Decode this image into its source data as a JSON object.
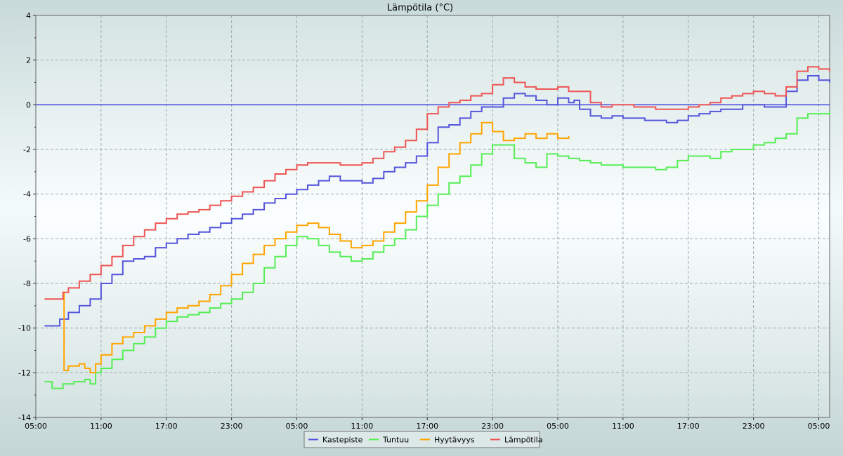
{
  "chart_data": {
    "type": "line",
    "title": "Lämpötila (°C)",
    "xlabel": "",
    "ylabel": "",
    "ylim": [
      -14,
      4
    ],
    "yticks": [
      "4",
      "2",
      "0",
      "-2",
      "-4",
      "-6",
      "-8",
      "-10",
      "-12",
      "-14"
    ],
    "x_tick_labels": [
      "05:00",
      "11:00",
      "17:00",
      "23:00",
      "05:00",
      "11:00",
      "17:00",
      "23:00",
      "05:00",
      "11:00",
      "17:00",
      "23:00",
      "05:00"
    ],
    "x_hours_range": [
      0,
      73
    ],
    "grid": true,
    "legend_position": "bottom-center",
    "reference_line": {
      "y": 0,
      "color": "#4444dd"
    },
    "series": [
      {
        "name": "Kastepiste",
        "color": "#5555dd",
        "x": [
          0.8,
          2.0,
          2.2,
          3.0,
          4.0,
          5.0,
          6.0,
          7.0,
          8.0,
          9.0,
          10.0,
          11.0,
          12.0,
          13.0,
          14.0,
          15.0,
          16.0,
          17.0,
          18.0,
          19.0,
          20.0,
          21.0,
          22.0,
          23.0,
          24.0,
          25.0,
          26.0,
          27.0,
          28.0,
          29.0,
          30.0,
          31.0,
          32.0,
          33.0,
          34.0,
          35.0,
          36.0,
          37.0,
          38.0,
          39.0,
          40.0,
          41.0,
          42.0,
          43.0,
          44.0,
          45.0,
          46.0,
          47.0,
          48.0,
          49.0,
          49.5,
          50.0,
          51.0,
          52.0,
          53.0,
          54.0,
          55.0,
          56.0,
          57.0,
          58.0,
          59.0,
          60.0,
          61.0,
          62.0,
          63.0,
          64.0,
          65.0,
          66.0,
          67.0,
          68.0,
          69.0,
          70.0,
          71.0,
          72.0,
          73.0
        ],
        "values": [
          -9.9,
          -9.9,
          -9.6,
          -9.3,
          -9.0,
          -8.7,
          -8.0,
          -7.6,
          -7.0,
          -6.9,
          -6.8,
          -6.4,
          -6.2,
          -6.0,
          -5.8,
          -5.7,
          -5.5,
          -5.3,
          -5.1,
          -4.9,
          -4.7,
          -4.4,
          -4.2,
          -4.0,
          -3.8,
          -3.6,
          -3.4,
          -3.2,
          -3.4,
          -3.4,
          -3.5,
          -3.3,
          -3.0,
          -2.8,
          -2.6,
          -2.3,
          -1.7,
          -1.0,
          -0.9,
          -0.6,
          -0.3,
          -0.1,
          -0.1,
          0.3,
          0.5,
          0.4,
          0.2,
          0.0,
          0.3,
          0.1,
          0.2,
          -0.2,
          -0.5,
          -0.6,
          -0.5,
          -0.6,
          -0.6,
          -0.7,
          -0.7,
          -0.8,
          -0.7,
          -0.5,
          -0.4,
          -0.3,
          -0.2,
          -0.2,
          0.0,
          0.0,
          -0.1,
          -0.1,
          0.6,
          1.1,
          1.3,
          1.1,
          1.0
        ]
      },
      {
        "name": "Tuntuu",
        "color": "#55ee55",
        "x": [
          0.8,
          1.5,
          2.5,
          3.5,
          4.5,
          5.0,
          5.5,
          6.0,
          7.0,
          8.0,
          9.0,
          10.0,
          11.0,
          12.0,
          13.0,
          14.0,
          15.0,
          16.0,
          17.0,
          18.0,
          19.0,
          20.0,
          21.0,
          22.0,
          23.0,
          24.0,
          25.0,
          26.0,
          27.0,
          28.0,
          29.0,
          30.0,
          31.0,
          32.0,
          33.0,
          34.0,
          35.0,
          36.0,
          37.0,
          38.0,
          39.0,
          40.0,
          41.0,
          42.0,
          43.0,
          44.0,
          45.0,
          46.0,
          47.0,
          48.0,
          49.0,
          50.0,
          51.0,
          52.0,
          53.0,
          54.0,
          55.0,
          56.0,
          57.0,
          58.0,
          59.0,
          60.0,
          61.0,
          62.0,
          63.0,
          64.0,
          65.0,
          66.0,
          67.0,
          68.0,
          69.0,
          70.0,
          71.0,
          72.0,
          73.0
        ],
        "values": [
          -12.4,
          -12.7,
          -12.5,
          -12.4,
          -12.3,
          -12.5,
          -12.0,
          -11.8,
          -11.4,
          -11.0,
          -10.7,
          -10.4,
          -10.0,
          -9.7,
          -9.5,
          -9.4,
          -9.3,
          -9.1,
          -8.9,
          -8.7,
          -8.4,
          -8.0,
          -7.3,
          -6.8,
          -6.3,
          -5.9,
          -6.0,
          -6.3,
          -6.6,
          -6.8,
          -7.0,
          -6.9,
          -6.6,
          -6.3,
          -6.0,
          -5.6,
          -5.0,
          -4.5,
          -4.0,
          -3.5,
          -3.2,
          -2.7,
          -2.2,
          -1.8,
          -1.8,
          -2.4,
          -2.6,
          -2.8,
          -2.2,
          -2.3,
          -2.4,
          -2.5,
          -2.6,
          -2.7,
          -2.7,
          -2.8,
          -2.8,
          -2.8,
          -2.9,
          -2.8,
          -2.5,
          -2.3,
          -2.3,
          -2.4,
          -2.1,
          -2.0,
          -2.0,
          -1.8,
          -1.7,
          -1.5,
          -1.3,
          -0.6,
          -0.4,
          -0.4,
          -0.3
        ]
      },
      {
        "name": "Hyytävyys",
        "color": "#ffa500",
        "x": [
          2.5,
          2.6,
          3.0,
          4.0,
          4.5,
          5.0,
          5.5,
          6.0,
          7.0,
          8.0,
          9.0,
          10.0,
          11.0,
          12.0,
          13.0,
          14.0,
          15.0,
          16.0,
          17.0,
          18.0,
          19.0,
          20.0,
          21.0,
          22.0,
          23.0,
          24.0,
          25.0,
          26.0,
          27.0,
          28.0,
          29.0,
          30.0,
          31.0,
          32.0,
          33.0,
          34.0,
          35.0,
          36.0,
          37.0,
          38.0,
          39.0,
          40.0,
          41.0,
          42.0,
          43.0,
          44.0,
          45.0,
          46.0,
          47.0,
          48.0,
          49.0
        ],
        "values": [
          -8.4,
          -11.9,
          -11.7,
          -11.6,
          -11.8,
          -12.0,
          -11.6,
          -11.2,
          -10.7,
          -10.4,
          -10.2,
          -9.9,
          -9.6,
          -9.3,
          -9.1,
          -9.0,
          -8.8,
          -8.5,
          -8.1,
          -7.6,
          -7.1,
          -6.7,
          -6.3,
          -6.0,
          -5.7,
          -5.4,
          -5.3,
          -5.5,
          -5.8,
          -6.1,
          -6.4,
          -6.3,
          -6.1,
          -5.7,
          -5.3,
          -4.8,
          -4.3,
          -3.6,
          -2.8,
          -2.2,
          -1.7,
          -1.3,
          -0.8,
          -1.2,
          -1.6,
          -1.5,
          -1.3,
          -1.5,
          -1.3,
          -1.5,
          -1.4
        ]
      },
      {
        "name": "Lämpötila",
        "color": "#ee5555",
        "x": [
          0.8,
          1.8,
          2.5,
          3.0,
          4.0,
          5.0,
          6.0,
          7.0,
          8.0,
          9.0,
          10.0,
          11.0,
          12.0,
          13.0,
          14.0,
          15.0,
          16.0,
          17.0,
          18.0,
          19.0,
          20.0,
          21.0,
          22.0,
          23.0,
          24.0,
          25.0,
          26.0,
          27.0,
          28.0,
          29.0,
          30.0,
          31.0,
          32.0,
          33.0,
          34.0,
          35.0,
          36.0,
          37.0,
          38.0,
          39.0,
          40.0,
          41.0,
          42.0,
          43.0,
          44.0,
          45.0,
          46.0,
          47.0,
          48.0,
          49.0,
          50.0,
          51.0,
          52.0,
          53.0,
          54.0,
          55.0,
          56.0,
          57.0,
          58.0,
          59.0,
          60.0,
          61.0,
          62.0,
          63.0,
          64.0,
          65.0,
          66.0,
          67.0,
          68.0,
          69.0,
          70.0,
          71.0,
          72.0,
          73.0
        ],
        "values": [
          -8.7,
          -8.7,
          -8.4,
          -8.2,
          -7.9,
          -7.6,
          -7.2,
          -6.8,
          -6.3,
          -5.9,
          -5.6,
          -5.3,
          -5.1,
          -4.9,
          -4.8,
          -4.7,
          -4.5,
          -4.3,
          -4.1,
          -3.9,
          -3.7,
          -3.4,
          -3.1,
          -2.9,
          -2.7,
          -2.6,
          -2.6,
          -2.6,
          -2.7,
          -2.7,
          -2.6,
          -2.4,
          -2.1,
          -1.9,
          -1.6,
          -1.1,
          -0.4,
          -0.1,
          0.1,
          0.2,
          0.4,
          0.5,
          0.9,
          1.2,
          1.0,
          0.8,
          0.7,
          0.7,
          0.8,
          0.6,
          0.6,
          0.1,
          -0.1,
          0.0,
          0.0,
          -0.1,
          -0.1,
          -0.2,
          -0.2,
          -0.2,
          -0.1,
          0.0,
          0.1,
          0.3,
          0.4,
          0.5,
          0.6,
          0.5,
          0.4,
          0.8,
          1.5,
          1.7,
          1.6,
          1.5
        ]
      }
    ]
  }
}
